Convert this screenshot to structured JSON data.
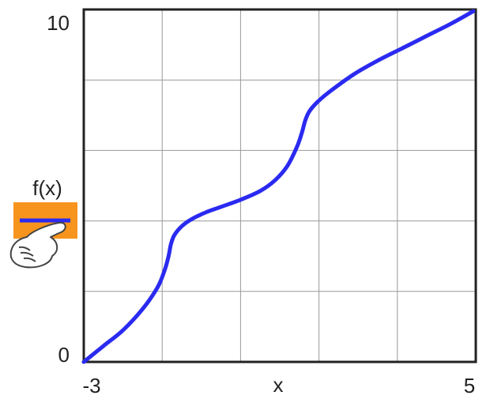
{
  "chart_data": {
    "type": "line",
    "title": "",
    "xlabel": "x",
    "ylabel": "f(x)",
    "xlim": [
      -3,
      5
    ],
    "ylim": [
      0,
      10
    ],
    "x_ticks": [
      "-3",
      "5"
    ],
    "y_ticks": [
      "0",
      "10"
    ],
    "grid": true,
    "grid_divisions": {
      "x": 5,
      "y": 5
    },
    "series": [
      {
        "name": "f(x)",
        "color": "#2a2af0",
        "points": [
          [
            -3.0,
            0.0
          ],
          [
            -2.6,
            0.45
          ],
          [
            -2.2,
            0.9
          ],
          [
            -1.8,
            1.5
          ],
          [
            -1.5,
            2.1
          ],
          [
            -1.35,
            2.6
          ],
          [
            -1.27,
            3.0
          ],
          [
            -1.22,
            3.35
          ],
          [
            -1.15,
            3.6
          ],
          [
            -1.0,
            3.85
          ],
          [
            -0.8,
            4.05
          ],
          [
            -0.5,
            4.25
          ],
          [
            -0.2,
            4.4
          ],
          [
            0.2,
            4.6
          ],
          [
            0.6,
            4.85
          ],
          [
            0.9,
            5.15
          ],
          [
            1.15,
            5.55
          ],
          [
            1.35,
            6.1
          ],
          [
            1.45,
            6.5
          ],
          [
            1.52,
            6.85
          ],
          [
            1.6,
            7.1
          ],
          [
            1.75,
            7.35
          ],
          [
            2.0,
            7.65
          ],
          [
            2.5,
            8.15
          ],
          [
            3.0,
            8.55
          ],
          [
            3.5,
            8.9
          ],
          [
            4.0,
            9.25
          ],
          [
            4.5,
            9.6
          ],
          [
            4.95,
            9.95
          ]
        ]
      }
    ]
  },
  "legend": {
    "label": "f(x)",
    "swatch_color": "#2a2af0",
    "background_color": "#f7941d",
    "pointer_icon": "pointing-hand-icon"
  },
  "colors": {
    "frame": "#222222",
    "grid": "#999999",
    "line": "#2a2af0"
  }
}
